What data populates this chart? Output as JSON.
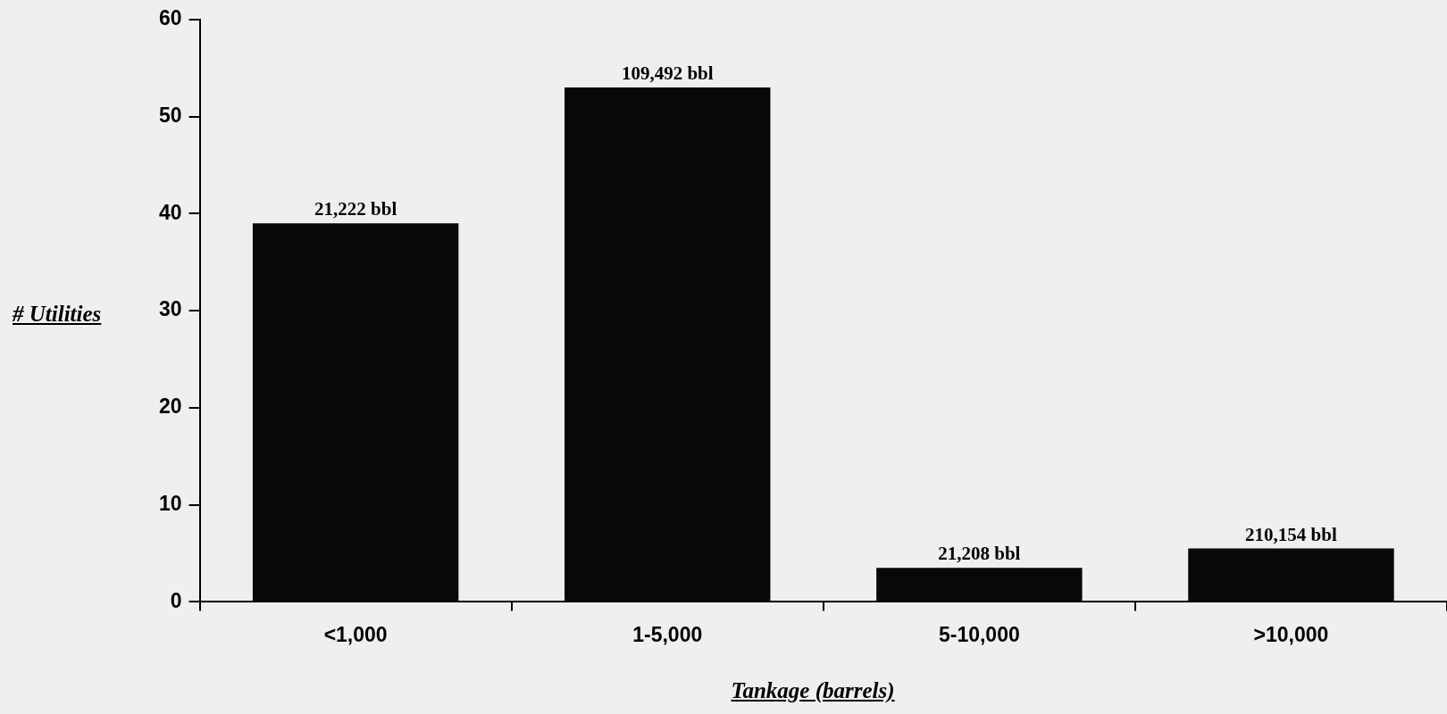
{
  "chart_data": {
    "type": "bar",
    "xlabel": "Tankage (barrels)",
    "ylabel": "# Utilities",
    "categories": [
      "<1,000",
      "1-5,000",
      "5-10,000",
      ">10,000"
    ],
    "values": [
      39,
      53,
      3.5,
      5.5
    ],
    "color": "#080808",
    "annotations": [
      {
        "text": "21,222 bbl",
        "x": "<1,000",
        "y": 39
      },
      {
        "text": "109,492 bbl",
        "x": "1-5,000",
        "y": 53
      },
      {
        "text": "21,208 bbl",
        "x": "5-10,000",
        "y": 3.5
      },
      {
        "text": "210,154 bbl",
        "x": ">10,000",
        "y": 5.5
      }
    ],
    "ylim": [
      0,
      60
    ],
    "yticks": [
      0,
      10,
      20,
      30,
      40,
      50,
      60
    ],
    "grid": false,
    "legend": false
  }
}
